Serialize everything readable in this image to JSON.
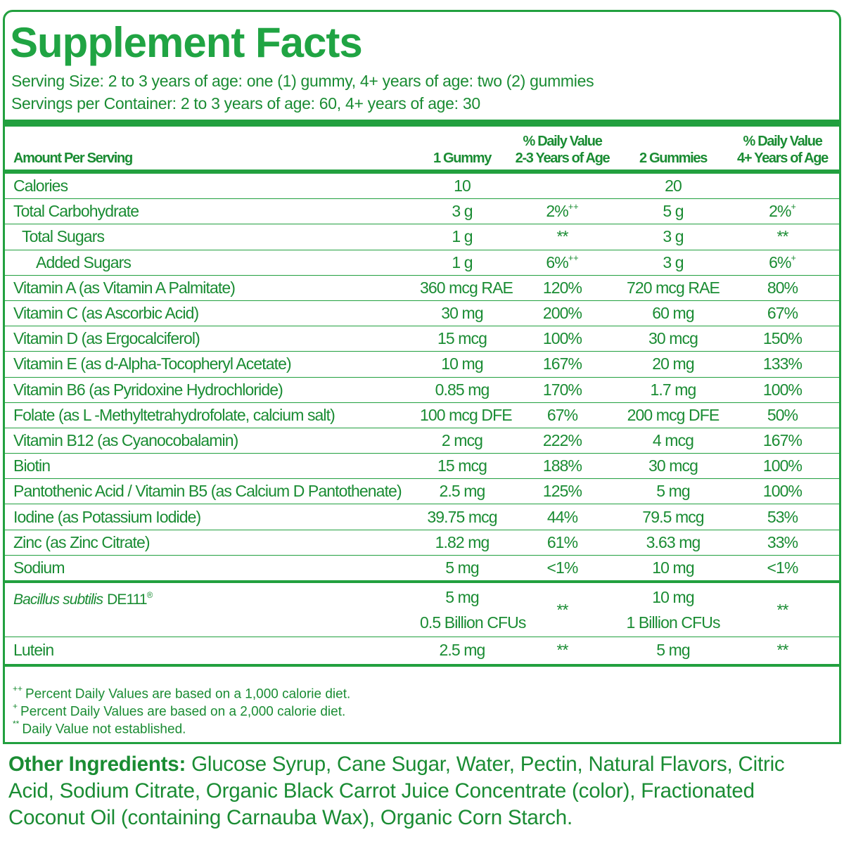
{
  "title": "Supplement Facts",
  "serving_size": "Serving Size: 2 to 3 years of age: one (1) gummy, 4+ years of age: two (2) gummies",
  "servings_per_container": "Servings per Container: 2 to 3 years of age: 60, 4+ years of age: 30",
  "table": {
    "header": [
      [
        "Amount Per Serving"
      ],
      [
        "1 Gummy"
      ],
      [
        "% Daily Value",
        "2-3 Years of Age"
      ],
      [
        "2 Gummies"
      ],
      [
        "% Daily Value",
        "4+ Years of Age"
      ]
    ],
    "rows": [
      [
        "Calories",
        "10",
        "",
        "20",
        ""
      ],
      [
        "Total Carbohydrate",
        "3 g",
        {
          "text": "2%",
          "sup": "++"
        },
        "5 g",
        {
          "text": "2%",
          "sup": "+"
        }
      ],
      [
        "Total Sugars",
        "1 g",
        "**",
        "3 g",
        "**"
      ],
      [
        "Added Sugars",
        "1 g",
        {
          "text": "6%",
          "sup": "++"
        },
        "3 g",
        {
          "text": "6%",
          "sup": "+"
        }
      ],
      [
        "Vitamin A (as Vitamin A Palmitate)",
        "360 mcg RAE",
        "120%",
        "720 mcg RAE",
        "80%"
      ],
      [
        "Vitamin C (as Ascorbic Acid)",
        "30 mg",
        "200%",
        "60 mg",
        "67%"
      ],
      [
        "Vitamin D (as Ergocalciferol)",
        "15 mcg",
        "100%",
        "30 mcg",
        "150%"
      ],
      [
        "Vitamin E (as d-Alpha-Tocopheryl Acetate)",
        "10 mg",
        "167%",
        "20 mg",
        "133%"
      ],
      [
        "Vitamin B6 (as Pyridoxine Hydrochloride)",
        "0.85 mg",
        "170%",
        "1.7 mg",
        "100%"
      ],
      [
        "Folate (as L -Methyltetrahydrofolate, calcium salt)",
        "100 mcg DFE",
        "67%",
        "200 mcg DFE",
        "50%"
      ],
      [
        "Vitamin B12 (as Cyanocobalamin)",
        "2 mcg",
        "222%",
        "4 mcg",
        "167%"
      ],
      [
        "Biotin",
        "15 mcg",
        "188%",
        "30 mcg",
        "100%"
      ],
      [
        "Pantothenic Acid / Vitamin B5 (as Calcium D Pantothenate)",
        "2.5 mg",
        "125%",
        "5 mg",
        "100%"
      ],
      [
        "Iodine (as Potassium Iodide)",
        "39.75 mcg",
        "44%",
        "79.5 mcg",
        "53%"
      ],
      [
        "Zinc (as Zinc Citrate)",
        "1.82 mg",
        "61%",
        "3.63 mg",
        "33%"
      ],
      [
        "Sodium",
        "5 mg",
        "<1%",
        "10 mg",
        "<1%"
      ]
    ],
    "other_rows": [
      [
        {
          "italic": "Bacillus subtilis",
          "text": "DE111",
          "sup": "®"
        },
        {
          "lines": [
            "5 mg",
            "0.5 Billion CFUs"
          ]
        },
        "**",
        {
          "lines": [
            "10 mg",
            "1 Billion CFUs"
          ]
        },
        "**"
      ],
      [
        "Lutein",
        "2.5 mg",
        "**",
        "5 mg",
        "**"
      ]
    ]
  },
  "footnotes": [
    {
      "sup": "++",
      "text": "Percent Daily Values are based on a 1,000 calorie diet."
    },
    {
      "sup": "+",
      "text": "Percent Daily Values are based on a 2,000 calorie diet."
    },
    {
      "sup": "**",
      "text": "Daily Value not established."
    }
  ],
  "other_ingredients": {
    "label": "Other Ingredients:",
    "text": "Glucose Syrup, Cane Sugar, Water, Pectin, Natural Flavors, Citric Acid, Sodium Citrate, Organic Black Carrot Juice Concentrate (color), Fractionated Coconut Oil (containing Carnauba Wax), Organic Corn Starch."
  }
}
